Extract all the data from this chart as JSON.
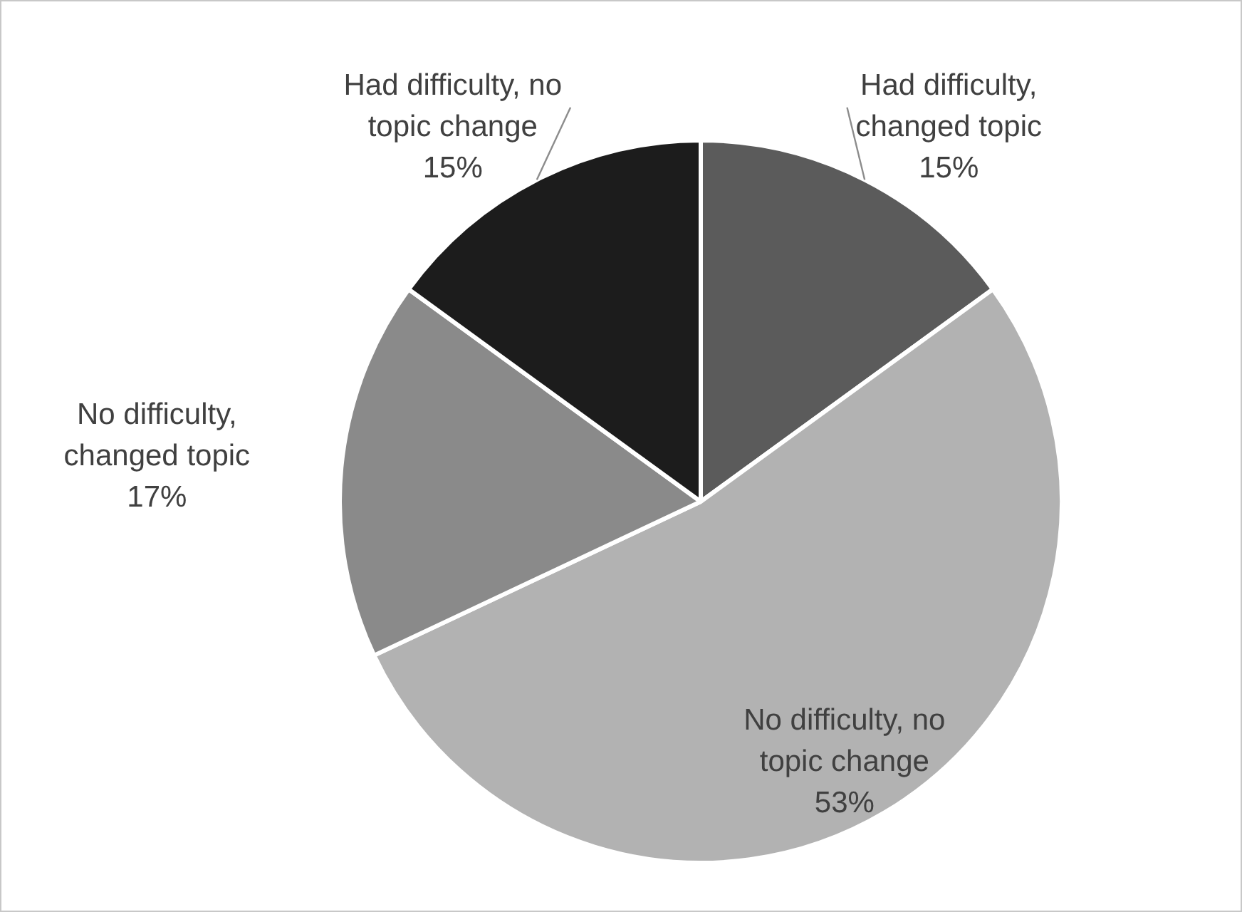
{
  "chart_data": {
    "type": "pie",
    "categories": [
      "Had difficulty, changed topic",
      "No difficulty, no topic change",
      "No difficulty, changed topic",
      "Had difficulty, no topic change"
    ],
    "values": [
      15,
      53,
      17,
      15
    ],
    "value_labels": [
      "15%",
      "53%",
      "17%",
      "15%"
    ],
    "colors": [
      "#5b5b5b",
      "#b2b2b2",
      "#8a8a8a",
      "#1c1c1c"
    ],
    "legend": false
  }
}
